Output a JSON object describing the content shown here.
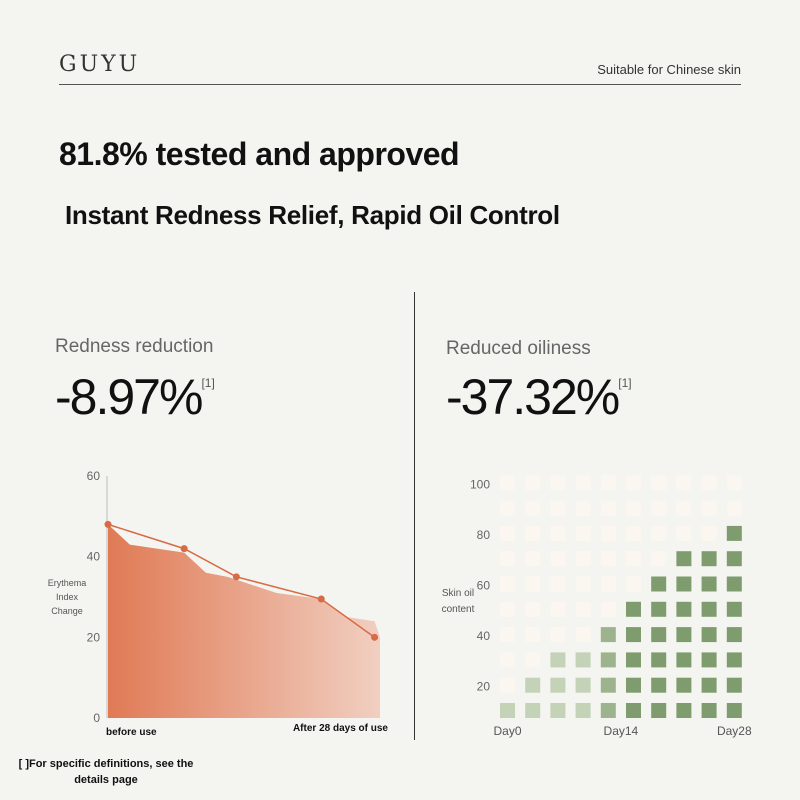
{
  "header": {
    "brand": "GUYU",
    "tagline": "Suitable for Chinese skin"
  },
  "hero": {
    "headline": "81.8% tested and approved",
    "subhead": "Instant Redness Relief, Rapid Oil Control"
  },
  "left_panel": {
    "label": "Redness reduction",
    "stat": "-8.97%",
    "ref": "[1]"
  },
  "right_panel": {
    "label": "Reduced oiliness",
    "stat": "-37.32%",
    "ref": "[1]"
  },
  "footnote": "[ ]For specific definitions, see the details page",
  "colors": {
    "orange_dark": "#e07a55",
    "orange_light": "#f1cfc1",
    "line": "#d86a45",
    "green_dark": "#7f9c6e",
    "green_light": "#c4d2b8",
    "cell_empty": "#fbf6ef"
  },
  "chart_data": [
    {
      "type": "area",
      "ylabel": "Erythema\nIndex\nChange",
      "ylim": [
        0,
        60
      ],
      "yticks": [
        0,
        20,
        40,
        60
      ],
      "x_labels": [
        "before use",
        "After 28 days of use"
      ],
      "line_series": [
        {
          "x": 0,
          "y": 48
        },
        {
          "x": 7,
          "y": 42
        },
        {
          "x": 11.8,
          "y": 35
        },
        {
          "x": 19.6,
          "y": 29.5
        },
        {
          "x": 24.5,
          "y": 20
        }
      ],
      "area_series": [
        {
          "x": 0,
          "y": 48
        },
        {
          "x": 2,
          "y": 43
        },
        {
          "x": 7,
          "y": 41
        },
        {
          "x": 9,
          "y": 36
        },
        {
          "x": 11,
          "y": 35
        },
        {
          "x": 15.5,
          "y": 31
        },
        {
          "x": 19.6,
          "y": 29.5
        },
        {
          "x": 22,
          "y": 25
        },
        {
          "x": 24.5,
          "y": 24
        },
        {
          "x": 25,
          "y": 20
        }
      ],
      "grid": false
    },
    {
      "type": "heatmap",
      "ylabel": "Skin oil content",
      "yticks": [
        20,
        40,
        60,
        80,
        100
      ],
      "x_labels": [
        "Day0",
        "Day14",
        "Day28"
      ],
      "rows": 10,
      "columns": 10,
      "filled_per_column": [
        1,
        2,
        3,
        3,
        4,
        5,
        6,
        7,
        7,
        8
      ],
      "filled_level": [
        "light",
        "light",
        "light",
        "light",
        "mid",
        "dark",
        "dark",
        "dark",
        "dark",
        "dark"
      ]
    }
  ]
}
